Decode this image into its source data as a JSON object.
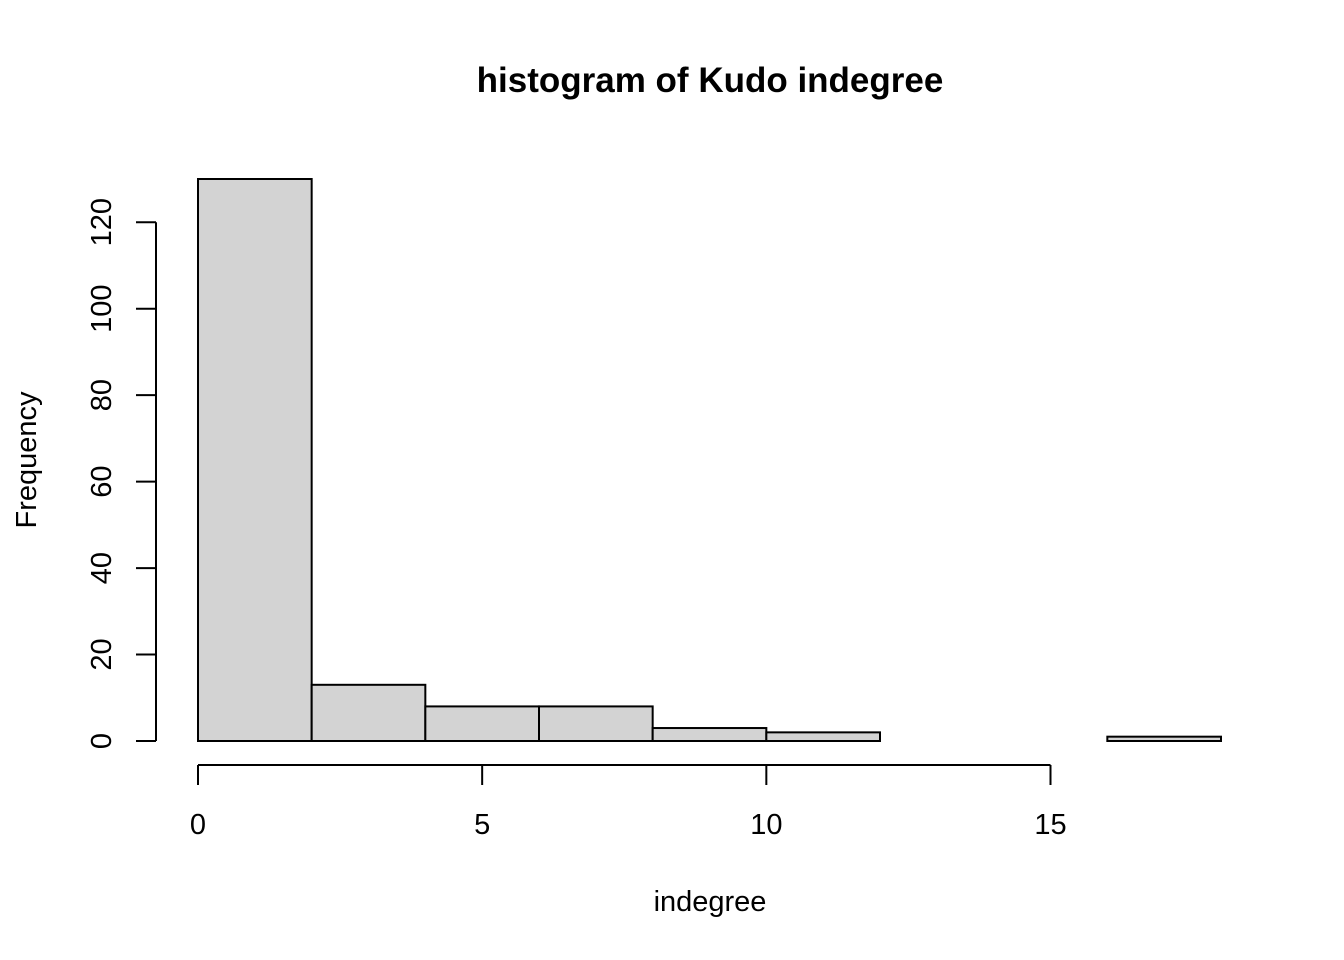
{
  "chart_data": {
    "type": "bar",
    "title": "histogram of Kudo indegree",
    "xlabel": "indegree",
    "ylabel": "Frequency",
    "bins": [
      {
        "x0": 0,
        "x1": 2,
        "count": 130
      },
      {
        "x0": 2,
        "x1": 4,
        "count": 13
      },
      {
        "x0": 4,
        "x1": 6,
        "count": 8
      },
      {
        "x0": 6,
        "x1": 8,
        "count": 8
      },
      {
        "x0": 8,
        "x1": 10,
        "count": 3
      },
      {
        "x0": 10,
        "x1": 12,
        "count": 2
      },
      {
        "x0": 12,
        "x1": 14,
        "count": 0
      },
      {
        "x0": 14,
        "x1": 16,
        "count": 0
      },
      {
        "x0": 16,
        "x1": 18,
        "count": 1
      }
    ],
    "xlim": [
      0,
      18
    ],
    "ylim": [
      0,
      130
    ],
    "x_ticks": [
      0,
      5,
      10,
      15
    ],
    "y_ticks": [
      0,
      20,
      40,
      60,
      80,
      100,
      120
    ],
    "bar_color": "#d3d3d3",
    "bar_border_color": "#000000",
    "grid": false
  }
}
